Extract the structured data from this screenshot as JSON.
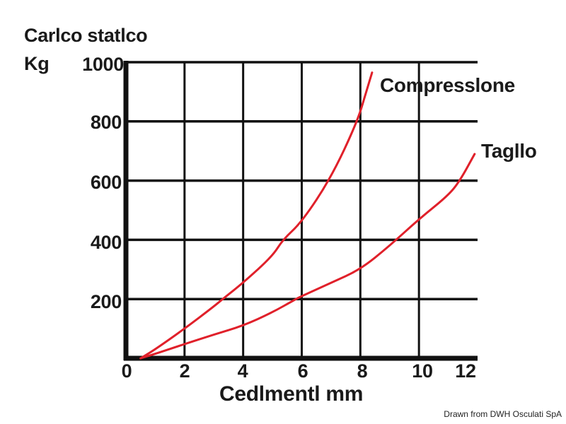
{
  "chart_data": {
    "type": "line",
    "title": "",
    "ylabel": "Carlco statlco\nKg",
    "ylabel_lines": [
      "Carlco statlco",
      "Kg"
    ],
    "xlabel": "Cedlmentl mm",
    "xlim": [
      0,
      12
    ],
    "ylim": [
      0,
      1000
    ],
    "grid": true,
    "x_ticks": [
      "0",
      "2",
      "4",
      "6",
      "8",
      "10",
      "12"
    ],
    "y_ticks": [
      "200",
      "400",
      "600",
      "800",
      "1000"
    ],
    "legend_position": "inline labels at line ends (right)",
    "line_color": "#e0202a",
    "series": [
      {
        "name": "Compresslone",
        "x": [
          0.5,
          1.0,
          2.0,
          3.0,
          3.3,
          4.0,
          5.0,
          5.35,
          6.0,
          7.0,
          7.9,
          8.2,
          8.4
        ],
        "y": [
          0,
          30,
          100,
          175,
          200,
          255,
          345,
          400,
          460,
          610,
          800,
          900,
          965
        ]
      },
      {
        "name": "Tagllo",
        "x": [
          0.5,
          1.0,
          2.0,
          3.0,
          4.0,
          5.0,
          5.8,
          6.0,
          7.0,
          8.0,
          9.0,
          10.0,
          11.0,
          11.4,
          11.9
        ],
        "y": [
          0,
          15,
          48,
          80,
          110,
          155,
          200,
          210,
          255,
          300,
          380,
          470,
          550,
          600,
          690
        ]
      }
    ]
  },
  "labels": {
    "y_title_line1": "Carlco statlco",
    "y_title_line2": "Kg",
    "x_title": "Cedlmentl mm",
    "series_1": "Compresslone",
    "series_2": "Tagllo",
    "credit": "Drawn from DWH Osculati SpA"
  },
  "colors": {
    "line": "#e0202a",
    "grid": "#111111",
    "text": "#1a1a1a"
  }
}
